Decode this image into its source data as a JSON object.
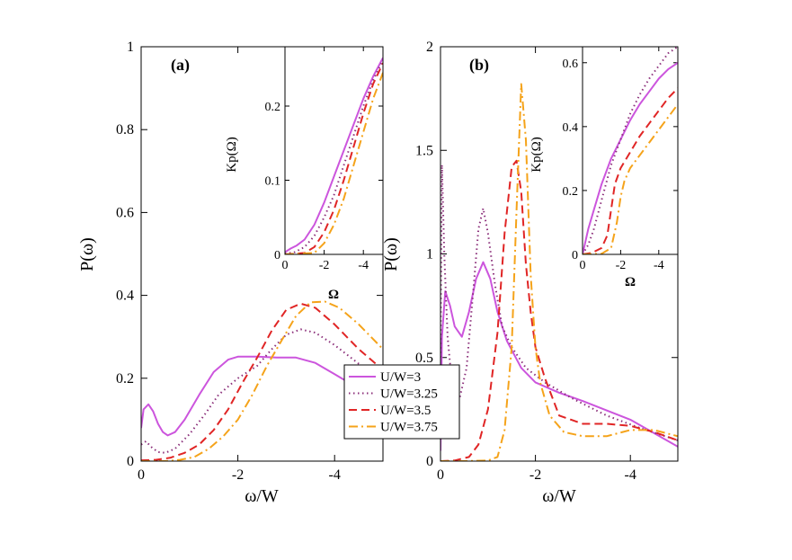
{
  "series_styles": [
    {
      "name": "U/W=3",
      "color": "#cc55dd",
      "dash": ""
    },
    {
      "name": "U/W=3.25",
      "color": "#8b2f7a",
      "dash": "1.5,3.5"
    },
    {
      "name": "U/W=3.5",
      "color": "#e02525",
      "dash": "9,5"
    },
    {
      "name": "U/W=3.75",
      "color": "#f5a31a",
      "dash": "10,4,2,4"
    }
  ],
  "legend": {
    "entries": [
      "U/W=3",
      "U/W=3.25",
      "U/W=3.5",
      "U/W=3.75"
    ],
    "placement": "center, between panels"
  },
  "chart_data": [
    {
      "id": "panel-a",
      "type": "line",
      "panel_label": "(a)",
      "xlabel": "ω/W",
      "ylabel": "P(ω)",
      "xlim": [
        0,
        -5
      ],
      "ylim": [
        0,
        1
      ],
      "xticks": [
        0,
        -2,
        -4
      ],
      "xtick_labels": [
        "0",
        "-2",
        "-4"
      ],
      "yticks": [
        0,
        0.2,
        0.4,
        0.6,
        0.8,
        1
      ],
      "ytick_labels": [
        "0",
        "0.2",
        "0.4",
        "0.6",
        "0.8",
        "1"
      ],
      "series": [
        {
          "name": "U/W=3",
          "x": [
            0,
            -0.05,
            -0.15,
            -0.25,
            -0.35,
            -0.45,
            -0.55,
            -0.7,
            -0.9,
            -1.2,
            -1.5,
            -1.8,
            -2.0,
            -2.4,
            -2.8,
            -3.2,
            -3.6,
            -4.0,
            -4.5,
            -5.0
          ],
          "y": [
            0.08,
            0.125,
            0.137,
            0.12,
            0.09,
            0.07,
            0.062,
            0.07,
            0.1,
            0.16,
            0.215,
            0.245,
            0.252,
            0.252,
            0.25,
            0.25,
            0.237,
            0.21,
            0.175,
            0.15
          ]
        },
        {
          "name": "U/W=3.25",
          "x": [
            0,
            -0.1,
            -0.2,
            -0.35,
            -0.5,
            -0.7,
            -1.0,
            -1.3,
            -1.6,
            -2.0,
            -2.4,
            -2.7,
            -3.0,
            -3.3,
            -3.6,
            -4.0,
            -4.5,
            -5.0
          ],
          "y": [
            0.04,
            0.048,
            0.035,
            0.022,
            0.02,
            0.03,
            0.065,
            0.11,
            0.16,
            0.2,
            0.23,
            0.27,
            0.305,
            0.318,
            0.31,
            0.28,
            0.235,
            0.2
          ]
        },
        {
          "name": "U/W=3.5",
          "x": [
            0,
            -0.3,
            -0.6,
            -0.9,
            -1.2,
            -1.5,
            -1.8,
            -2.1,
            -2.4,
            -2.7,
            -3.0,
            -3.3,
            -3.6,
            -4.0,
            -4.5,
            -5.0
          ],
          "y": [
            0.002,
            0.003,
            0.008,
            0.02,
            0.04,
            0.075,
            0.125,
            0.19,
            0.25,
            0.315,
            0.365,
            0.38,
            0.37,
            0.33,
            0.27,
            0.22
          ]
        },
        {
          "name": "U/W=3.75",
          "x": [
            0,
            -0.5,
            -0.8,
            -1.1,
            -1.4,
            -1.7,
            -2.0,
            -2.3,
            -2.6,
            -2.9,
            -3.2,
            -3.5,
            -3.8,
            -4.1,
            -4.5,
            -5.0
          ],
          "y": [
            0,
            0,
            0.003,
            0.01,
            0.03,
            0.06,
            0.1,
            0.16,
            0.23,
            0.29,
            0.35,
            0.383,
            0.385,
            0.37,
            0.33,
            0.27
          ]
        }
      ],
      "inset": {
        "xlabel": "Ω",
        "ylabel": "Kp(Ω)",
        "xlim": [
          0,
          -5
        ],
        "ylim": [
          0,
          0.28
        ],
        "xticks": [
          0,
          -2,
          -4
        ],
        "xtick_labels": [
          "0",
          "-2",
          "-4"
        ],
        "yticks": [
          0,
          0.1,
          0.2
        ],
        "ytick_labels": [
          "0",
          "0.1",
          "0.2"
        ],
        "series": [
          {
            "name": "U/W=3",
            "x": [
              0,
              -0.3,
              -0.6,
              -1.0,
              -1.5,
              -2.0,
              -2.5,
              -3.0,
              -3.5,
              -4.0,
              -4.5,
              -5.0
            ],
            "y": [
              0.003,
              0.008,
              0.012,
              0.02,
              0.04,
              0.07,
              0.105,
              0.14,
              0.175,
              0.21,
              0.24,
              0.265
            ]
          },
          {
            "name": "U/W=3.25",
            "x": [
              0,
              -0.5,
              -1.0,
              -1.5,
              -2.0,
              -2.5,
              -3.0,
              -3.5,
              -4.0,
              -4.5,
              -5.0
            ],
            "y": [
              0.001,
              0.003,
              0.01,
              0.025,
              0.05,
              0.08,
              0.12,
              0.16,
              0.2,
              0.235,
              0.262
            ]
          },
          {
            "name": "U/W=3.5",
            "x": [
              0,
              -1.0,
              -1.5,
              -2.0,
              -2.5,
              -3.0,
              -3.5,
              -4.0,
              -4.5,
              -5.0
            ],
            "y": [
              0,
              0.002,
              0.01,
              0.03,
              0.06,
              0.1,
              0.145,
              0.19,
              0.23,
              0.258
            ]
          },
          {
            "name": "U/W=3.75",
            "x": [
              0,
              -1.5,
              -2.0,
              -2.5,
              -3.0,
              -3.5,
              -4.0,
              -4.5,
              -5.0
            ],
            "y": [
              0,
              0.002,
              0.015,
              0.04,
              0.075,
              0.12,
              0.165,
              0.21,
              0.245
            ]
          }
        ]
      }
    },
    {
      "id": "panel-b",
      "type": "line",
      "panel_label": "(b)",
      "xlabel": "ω/W",
      "ylabel": "P(ω)",
      "xlim": [
        0,
        -5
      ],
      "ylim": [
        0,
        2
      ],
      "xticks": [
        0,
        -2,
        -4
      ],
      "xtick_labels": [
        "0",
        "-2",
        "-4"
      ],
      "yticks": [
        0,
        0.5,
        1,
        1.5,
        2
      ],
      "ytick_labels": [
        "0",
        "0.5",
        "1",
        "1.5",
        "2"
      ],
      "series": [
        {
          "name": "U/W=3",
          "x": [
            0,
            -0.03,
            -0.1,
            -0.2,
            -0.3,
            -0.45,
            -0.6,
            -0.75,
            -0.9,
            -1.05,
            -1.2,
            -1.4,
            -1.7,
            -2.0,
            -2.5,
            -3.0,
            -4.0,
            -5.0
          ],
          "y": [
            0.05,
            0.6,
            0.82,
            0.75,
            0.65,
            0.6,
            0.72,
            0.88,
            0.96,
            0.88,
            0.72,
            0.58,
            0.45,
            0.38,
            0.33,
            0.29,
            0.2,
            0.07
          ]
        },
        {
          "name": "U/W=3.25",
          "x": [
            0,
            -0.03,
            -0.08,
            -0.15,
            -0.25,
            -0.4,
            -0.55,
            -0.7,
            -0.8,
            -0.9,
            -1.0,
            -1.15,
            -1.3,
            -1.5,
            -1.8,
            -2.2,
            -2.8,
            -3.5,
            -4.2,
            -5.0
          ],
          "y": [
            0.5,
            1.43,
            1.0,
            0.6,
            0.35,
            0.3,
            0.45,
            0.85,
            1.12,
            1.22,
            1.1,
            0.85,
            0.65,
            0.55,
            0.45,
            0.38,
            0.3,
            0.22,
            0.16,
            0.1
          ]
        },
        {
          "name": "U/W=3.5",
          "x": [
            0,
            -0.3,
            -0.6,
            -0.8,
            -1.0,
            -1.2,
            -1.35,
            -1.5,
            -1.6,
            -1.7,
            -1.8,
            -1.9,
            -2.0,
            -2.2,
            -2.5,
            -3.0,
            -3.5,
            -4.0,
            -4.5,
            -5.0
          ],
          "y": [
            0,
            0.003,
            0.02,
            0.08,
            0.25,
            0.62,
            1.1,
            1.42,
            1.45,
            1.3,
            0.95,
            0.72,
            0.55,
            0.4,
            0.22,
            0.18,
            0.18,
            0.17,
            0.14,
            0.1
          ]
        },
        {
          "name": "U/W=3.75",
          "x": [
            0,
            -0.5,
            -1.0,
            -1.2,
            -1.35,
            -1.5,
            -1.6,
            -1.7,
            -1.8,
            -1.9,
            -2.0,
            -2.1,
            -2.3,
            -2.6,
            -3.0,
            -3.5,
            -4.0,
            -4.5,
            -5.0
          ],
          "y": [
            0,
            0,
            0.003,
            0.02,
            0.15,
            0.55,
            1.2,
            1.82,
            1.55,
            0.9,
            0.55,
            0.38,
            0.22,
            0.14,
            0.12,
            0.12,
            0.15,
            0.15,
            0.12
          ]
        }
      ],
      "inset": {
        "xlabel": "Ω",
        "ylabel": "Kp(Ω)",
        "xlim": [
          0,
          -5
        ],
        "ylim": [
          0,
          0.65
        ],
        "xticks": [
          0,
          -2,
          -4
        ],
        "xtick_labels": [
          "0",
          "-2",
          "-4"
        ],
        "yticks": [
          0,
          0.2,
          0.4,
          0.6
        ],
        "ytick_labels": [
          "0",
          "0.2",
          "0.4",
          "0.6"
        ],
        "series": [
          {
            "name": "U/W=3",
            "x": [
              0,
              -0.3,
              -0.6,
              -1.0,
              -1.5,
              -2.0,
              -2.5,
              -3.0,
              -3.5,
              -4.0,
              -4.5,
              -5.0
            ],
            "y": [
              0.0,
              0.08,
              0.14,
              0.22,
              0.3,
              0.36,
              0.42,
              0.47,
              0.51,
              0.55,
              0.58,
              0.6
            ]
          },
          {
            "name": "U/W=3.25",
            "x": [
              0,
              -0.3,
              -0.6,
              -1.0,
              -1.5,
              -2.0,
              -2.5,
              -3.0,
              -3.5,
              -4.0,
              -4.5,
              -5.0
            ],
            "y": [
              0.0,
              0.03,
              0.08,
              0.17,
              0.28,
              0.36,
              0.44,
              0.5,
              0.55,
              0.59,
              0.63,
              0.65
            ]
          },
          {
            "name": "U/W=3.5",
            "x": [
              0,
              -0.5,
              -1.0,
              -1.3,
              -1.5,
              -1.7,
              -2.0,
              -2.5,
              -3.0,
              -3.5,
              -4.0,
              -4.5,
              -5.0
            ],
            "y": [
              0,
              0.005,
              0.02,
              0.06,
              0.14,
              0.22,
              0.27,
              0.32,
              0.37,
              0.41,
              0.45,
              0.49,
              0.52
            ]
          },
          {
            "name": "U/W=3.75",
            "x": [
              0,
              -1.0,
              -1.5,
              -1.8,
              -2.0,
              -2.2,
              -2.5,
              -3.0,
              -3.5,
              -4.0,
              -4.5,
              -5.0
            ],
            "y": [
              0,
              0.002,
              0.02,
              0.1,
              0.18,
              0.23,
              0.27,
              0.31,
              0.35,
              0.39,
              0.43,
              0.47
            ]
          }
        ]
      }
    }
  ]
}
